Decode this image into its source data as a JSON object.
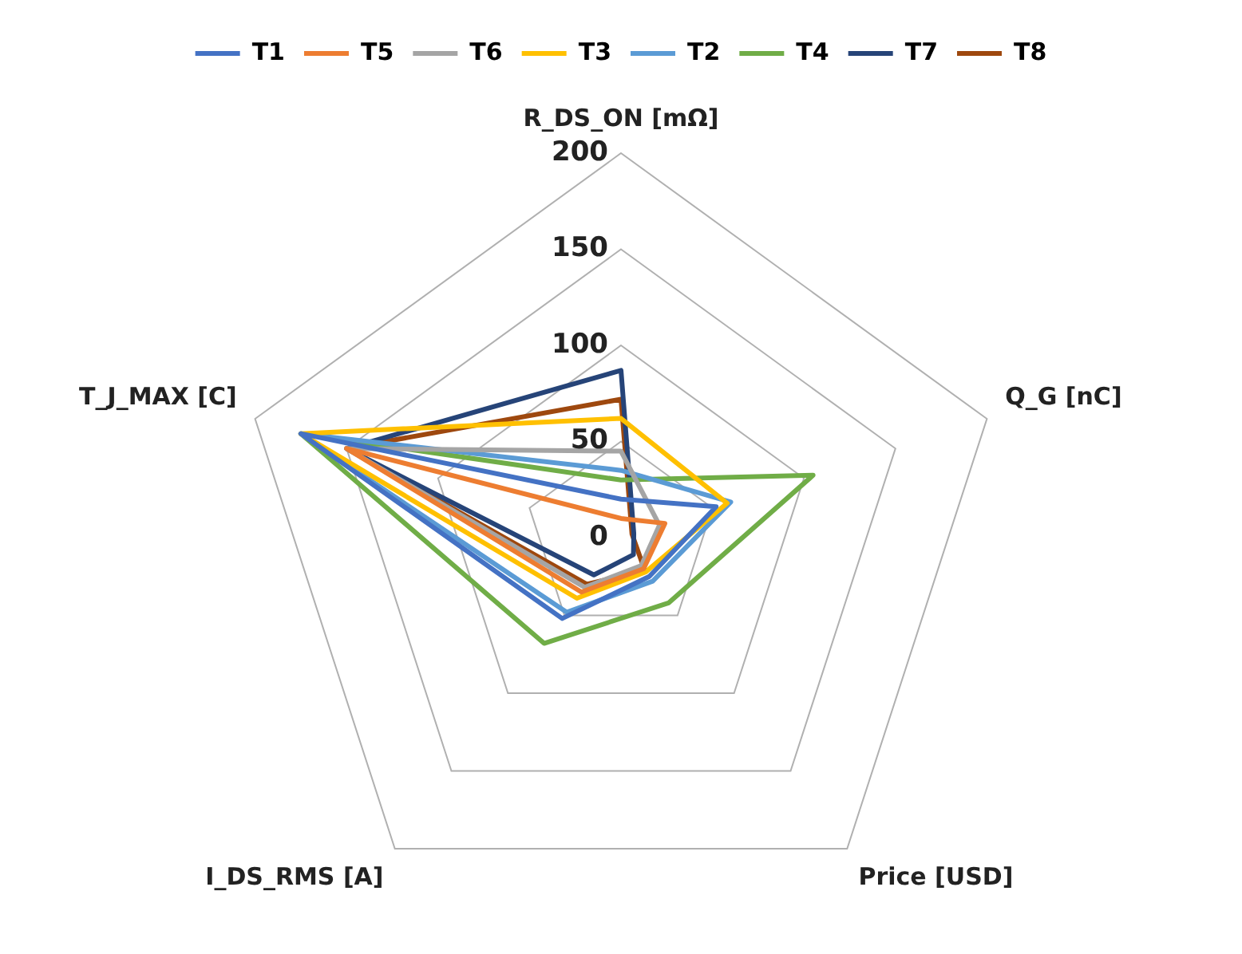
{
  "chart_data": {
    "type": "radar",
    "categories": [
      "R_DS_ON [mΩ]",
      "Q_G [nC]",
      "Price [USD]",
      "I_DS_RMS [A]",
      "T_J_MAX [C]"
    ],
    "series": [
      {
        "name": "T1",
        "color": "#4472c4",
        "values": [
          20,
          52,
          25,
          52,
          175
        ]
      },
      {
        "name": "T5",
        "color": "#ed7d31",
        "values": [
          10,
          24,
          20,
          35,
          150
        ]
      },
      {
        "name": "T6",
        "color": "#a5a5a5",
        "values": [
          45,
          21,
          18,
          32,
          150
        ]
      },
      {
        "name": "T3",
        "color": "#ffc000",
        "values": [
          62,
          58,
          22,
          39,
          175
        ]
      },
      {
        "name": "T2",
        "color": "#5b9bd5",
        "values": [
          35,
          60,
          28,
          48,
          175
        ]
      },
      {
        "name": "T4",
        "color": "#70ad47",
        "values": [
          30,
          105,
          42,
          68,
          175
        ]
      },
      {
        "name": "T7",
        "color": "#264478",
        "values": [
          87,
          7,
          11,
          24,
          150
        ]
      },
      {
        "name": "T8",
        "color": "#9e480e",
        "values": [
          72,
          6,
          21,
          30,
          150
        ]
      }
    ],
    "ylim": [
      0,
      200
    ],
    "yticks": [
      0,
      50,
      100,
      150,
      200
    ],
    "grid": true,
    "legend": "top",
    "marker": "none",
    "line_style": "solid"
  }
}
